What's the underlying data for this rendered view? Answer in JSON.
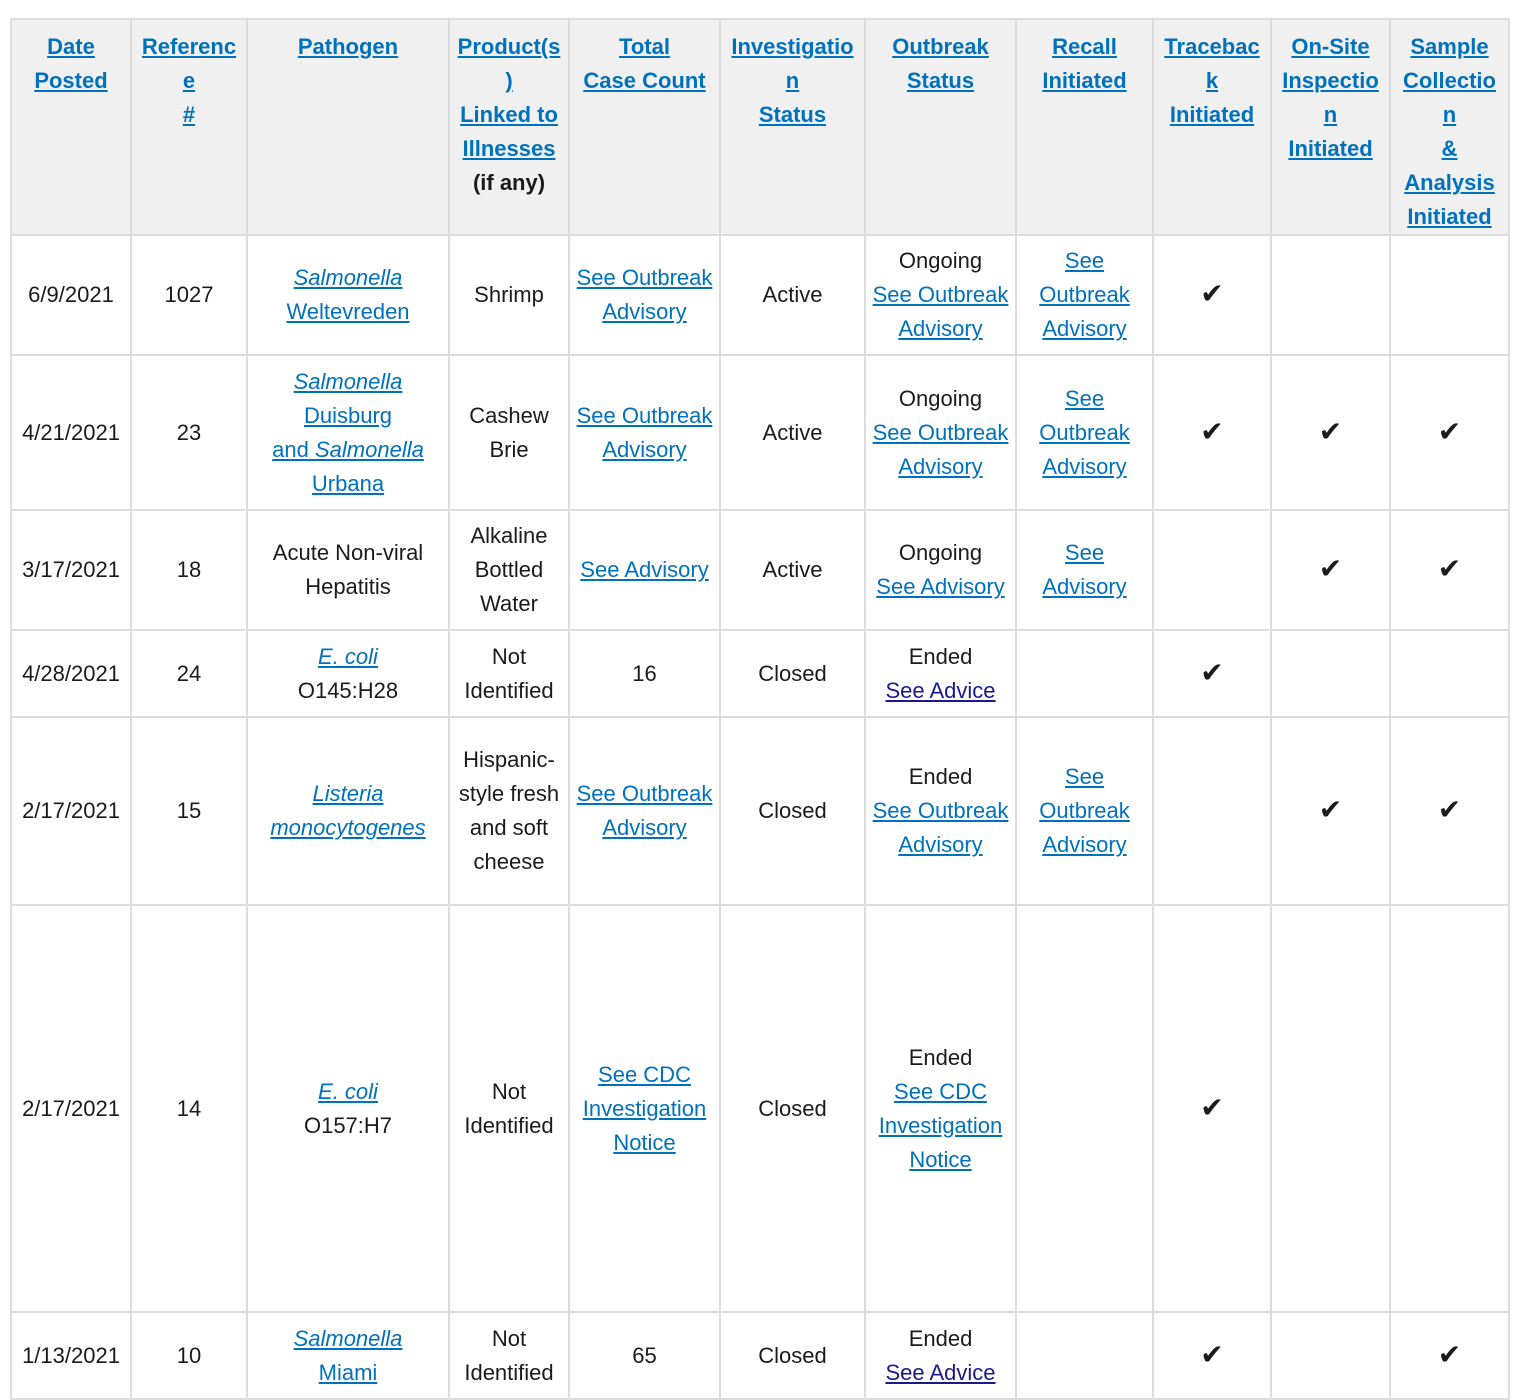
{
  "headers": {
    "date_posted": [
      "Date",
      "Posted"
    ],
    "reference": [
      "Reference",
      "#"
    ],
    "pathogen": "Pathogen",
    "products": [
      "Product(s)",
      "Linked to",
      "Illnesses"
    ],
    "products_note": "(if any)",
    "total_case_count": [
      "Total",
      "Case Count"
    ],
    "investigation_status": [
      "Investigation",
      "Status"
    ],
    "outbreak_status": [
      "Outbreak",
      "Status"
    ],
    "recall_initiated": [
      "Recall",
      "Initiated"
    ],
    "traceback_initiated": [
      "Traceback",
      "Initiated"
    ],
    "onsite_inspection_initiated": [
      "On-Site",
      "Inspection",
      "Initiated"
    ],
    "sample_collection_initiated": [
      "Sample",
      "Collection",
      "&",
      "Analysis",
      "Initiated"
    ]
  },
  "check_glyph": "✔",
  "rows": [
    {
      "date": "6/9/2021",
      "ref": "1027",
      "pathogen_link_italic": "Salmonella",
      "pathogen_link_rest": "Weltevreden",
      "product": "Shrimp",
      "case_count_link": "See Outbreak Advisory",
      "investigation": "Active",
      "outbreak_status": "Ongoing",
      "outbreak_link": "See Outbreak Advisory",
      "recall_link": "See Outbreak Advisory",
      "traceback": true,
      "onsite": false,
      "sample": false
    },
    {
      "date": "4/21/2021",
      "ref": "23",
      "pathogen_line1": "Salmonella",
      "pathogen_line2": "Duisburg",
      "pathogen_line3_plain": "and ",
      "pathogen_line3_italic": "Salmonella",
      "pathogen_line4": "Urbana",
      "product": "Cashew Brie",
      "case_count_link": "See Outbreak Advisory",
      "investigation": "Active",
      "outbreak_status": "Ongoing",
      "outbreak_link": "See Outbreak Advisory",
      "recall_link": "See Outbreak Advisory",
      "traceback": true,
      "onsite": true,
      "sample": true
    },
    {
      "date": "3/17/2021",
      "ref": "18",
      "pathogen_text": "Acute Non-viral Hepatitis",
      "product": "Alkaline Bottled Water",
      "case_count_link": "See Advisory",
      "investigation": "Active",
      "outbreak_status": "Ongoing",
      "outbreak_link": "See Advisory",
      "recall_link": "See Advisory",
      "traceback": false,
      "onsite": true,
      "sample": true
    },
    {
      "date": "4/28/2021",
      "ref": "24",
      "pathogen_link_italic": "E. coli",
      "pathogen_suffix": "O145:H28",
      "product": "Not Identified",
      "case_count": "16",
      "investigation": "Closed",
      "outbreak_status": "Ended",
      "outbreak_link": "See Advice",
      "traceback": true,
      "onsite": false,
      "sample": false
    },
    {
      "date": "2/17/2021",
      "ref": "15",
      "pathogen_link_italic": "Listeria monocytogenes",
      "product": "Hispanic-style fresh and soft cheese",
      "case_count_link": "See Outbreak Advisory",
      "investigation": "Closed",
      "outbreak_status": "Ended",
      "outbreak_link": "See Outbreak Advisory",
      "recall_link": "See Outbreak Advisory",
      "traceback": false,
      "onsite": true,
      "sample": true
    },
    {
      "date": "2/17/2021",
      "ref": "14",
      "pathogen_link_italic": "E. coli",
      "pathogen_suffix": "O157:H7",
      "product": "Not Identified",
      "case_count_link": "See CDC Investigation Notice",
      "investigation": "Closed",
      "outbreak_status": "Ended",
      "outbreak_link": "See CDC Investigation Notice",
      "traceback": true,
      "onsite": false,
      "sample": false
    },
    {
      "date": "1/13/2021",
      "ref": "10",
      "pathogen_link_italic": "Salmonella",
      "pathogen_link_rest": "Miami",
      "product": "Not Identified",
      "case_count": "65",
      "investigation": "Closed",
      "outbreak_status": "Ended",
      "outbreak_link": "See Advice",
      "traceback": true,
      "onsite": false,
      "sample": true
    }
  ]
}
